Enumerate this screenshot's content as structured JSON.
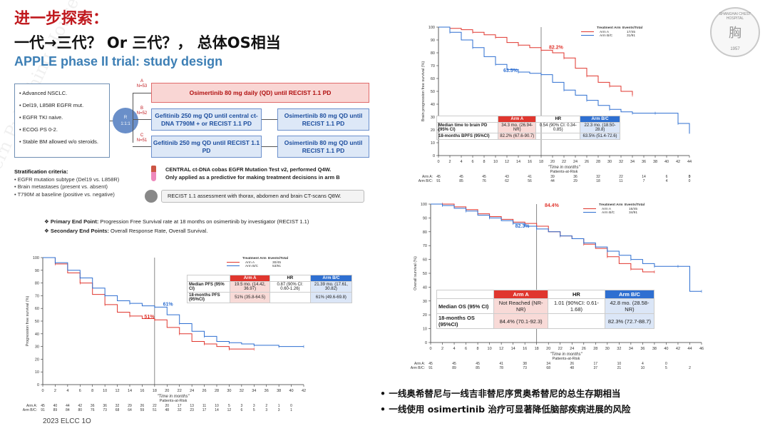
{
  "header": {
    "line1": "进一步探索：",
    "line2": "一代→三代？ Or 三代？， 总体OS相当",
    "subtitle": "APPLE phase II trial: study design"
  },
  "logo": {
    "name": "SHANGHAI CHEST HOSPITAL",
    "year": "1957",
    "glyphs": "胸"
  },
  "watermark": "ern Publishing House",
  "design": {
    "patient_criteria": [
      "Advanced NSCLC.",
      "Del19, L858R EGFR mut.",
      "EGFR TKI naive.",
      "ECOG PS 0-2.",
      "Stable BM allowed w/o steroids."
    ],
    "randomization": [
      "R",
      "1:1:1"
    ],
    "arms": [
      {
        "letter": "A",
        "n": "N=53",
        "first": "Osimertinib 80 mg daily (QD) until RECIST 1.1 PD",
        "second": ""
      },
      {
        "letter": "B",
        "n": "N=52",
        "first": "Gefitinib 250 mg QD until central ct-DNA T790M + or RECIST 1.1 PD",
        "second": "Osimertinib 80 mg QD until RECIST 1.1 PD"
      },
      {
        "letter": "C",
        "n": "N=51",
        "first": "Gefitinib 250 mg QD until RECIST 1.1 PD",
        "second": "Osimertinib 80 mg QD until RECIST 1.1 PD"
      }
    ],
    "stratification": {
      "heading": "Stratification criteria:",
      "items": [
        "EGFR mutation subtype (Del19 vs. L858R)",
        "Brain metastases (present vs. absent)",
        "T790M at baseline (positive vs. negative)"
      ]
    },
    "ctdna": {
      "line1": "CENTRAL ct-DNA cobas EGFR Mutation Test v2, performed Q4W.",
      "line2": "Only applied as a predictive for making treatment decisions in arm B"
    },
    "recist": "RECIST 1.1 assessment with thorax, abdomen and brain CT-scans Q8W.",
    "primary_endpoint": {
      "label": "Primary End Point:",
      "text": "Progression Free Survival rate at 18 months on osimertinib by investigator (RECIST 1.1)"
    },
    "secondary_endpoint": {
      "label": "Secondary End Points:",
      "text": "Overall Response Rate, Overall Survival."
    }
  },
  "colors": {
    "arm_a": "#e0362e",
    "arm_bc": "#2e6fd1",
    "title_red": "#c0191e",
    "subtitle_blue": "#3d7fb5"
  },
  "chart_data": [
    {
      "id": "pfs",
      "type": "line",
      "ylabel": "Progression free survival (%)",
      "xlabel": "Time in months",
      "risk_label": "Patients-at-Risk",
      "xlim": [
        0,
        42
      ],
      "ylim": [
        0,
        100
      ],
      "xticks": [
        0,
        2,
        4,
        6,
        8,
        10,
        12,
        14,
        16,
        18,
        20,
        22,
        24,
        26,
        28,
        30,
        32,
        34,
        36,
        38,
        40,
        42
      ],
      "yticks": [
        0,
        10,
        20,
        30,
        40,
        50,
        60,
        70,
        80,
        90,
        100
      ],
      "marker_x": 18,
      "legend_header": [
        "Treatment Arm",
        "Events/Total"
      ],
      "series": [
        {
          "name": "Arm A",
          "events": "30/45",
          "color": "#e0362e",
          "label": "51%",
          "label_xy": [
            16,
            51
          ],
          "x": [
            0,
            2,
            4,
            6,
            8,
            10,
            12,
            14,
            16,
            18,
            20,
            22,
            24,
            26,
            28,
            30,
            32,
            34
          ],
          "y": [
            100,
            95,
            88,
            80,
            71,
            63,
            57,
            54,
            52,
            51,
            45,
            40,
            34,
            32,
            30,
            28,
            28,
            28
          ]
        },
        {
          "name": "Arm B/C",
          "events": "53/91",
          "color": "#2e6fd1",
          "label": "61%",
          "label_xy": [
            19,
            61
          ],
          "x": [
            0,
            2,
            4,
            6,
            8,
            10,
            12,
            14,
            16,
            18,
            20,
            22,
            24,
            26,
            28,
            30,
            32,
            34,
            36,
            38,
            40,
            42
          ],
          "y": [
            100,
            96,
            90,
            84,
            76,
            70,
            66,
            64,
            62,
            61,
            55,
            48,
            42,
            38,
            34,
            33,
            32,
            31,
            31,
            30,
            30,
            30
          ]
        }
      ],
      "risk": [
        {
          "arm": "Arm A",
          "values": [
            "45",
            "40",
            "44",
            "42",
            "36",
            "36",
            "32",
            "29",
            "26",
            "22",
            "20",
            "17",
            "13",
            "11",
            "10",
            "5",
            "3",
            "3",
            "2",
            "1",
            "0",
            ""
          ]
        },
        {
          "arm": "Arm B/C",
          "values": [
            "91",
            "89",
            "84",
            "80",
            "76",
            "73",
            "68",
            "64",
            "59",
            "51",
            "48",
            "32",
            "23",
            "17",
            "14",
            "12",
            "6",
            "5",
            "3",
            "3",
            "1",
            ""
          ]
        }
      ],
      "table": {
        "headers": [
          "",
          "Arm A",
          "HR",
          "Arm B/C"
        ],
        "rows": [
          [
            "Median PFS (95% CI)",
            "19.5 mo. (14.42, 36.97)",
            "0.87 (90% CI: 0.60-1.26)",
            "21.39 mo. (17.61, 30.82)"
          ],
          [
            "18-months PFS (95%CI)",
            "51% (35.8-64.5)",
            "",
            "61% (49.6-69.8)"
          ]
        ]
      }
    },
    {
      "id": "brain",
      "type": "line",
      "ylabel": "Brain progression free survival (%)",
      "xlabel": "Time in months",
      "risk_label": "Patients-at-Risk",
      "xlim": [
        0,
        44
      ],
      "ylim": [
        0,
        100
      ],
      "xticks": [
        0,
        2,
        4,
        6,
        8,
        10,
        12,
        14,
        16,
        18,
        20,
        22,
        24,
        26,
        28,
        30,
        32,
        34,
        36,
        38,
        40,
        42,
        44
      ],
      "yticks": [
        0,
        10,
        20,
        30,
        40,
        50,
        60,
        70,
        80,
        90,
        100
      ],
      "marker_x": 18,
      "legend_header": [
        "Treatment Arm",
        "Events/Total"
      ],
      "series": [
        {
          "name": "Arm A",
          "events": "17/45",
          "color": "#e0362e",
          "label": "82.2%",
          "label_xy": [
            19,
            82
          ],
          "x": [
            0,
            2,
            4,
            6,
            8,
            10,
            12,
            14,
            16,
            18,
            20,
            22,
            24,
            26,
            28,
            30,
            32,
            34
          ],
          "y": [
            100,
            99,
            98,
            96,
            94,
            92,
            88,
            86,
            84,
            82,
            80,
            76,
            68,
            62,
            57,
            54,
            50,
            47
          ]
        },
        {
          "name": "Arm B/C",
          "events": "31/91",
          "color": "#2e6fd1",
          "label": "63.5%",
          "label_xy": [
            11,
            64
          ],
          "x": [
            0,
            2,
            4,
            6,
            8,
            10,
            12,
            14,
            16,
            18,
            20,
            22,
            24,
            26,
            28,
            30,
            32,
            34,
            36,
            38,
            40,
            42,
            44
          ],
          "y": [
            100,
            96,
            90,
            84,
            77,
            71,
            67,
            65,
            64,
            63,
            57,
            51,
            47,
            43,
            39,
            36,
            34,
            33,
            33,
            33,
            33,
            25,
            17
          ]
        }
      ],
      "risk": [
        {
          "arm": "Arm A",
          "values": [
            "45",
            "45",
            "45",
            "43",
            "41",
            "39",
            "36",
            "32",
            "22",
            "14",
            "6",
            "3",
            "0"
          ]
        },
        {
          "arm": "Arm B/C",
          "values": [
            "91",
            "85",
            "76",
            "62",
            "56",
            "44",
            "29",
            "18",
            "11",
            "7",
            "4",
            "0",
            ""
          ]
        }
      ],
      "table": {
        "headers": [
          "",
          "Arm A",
          "HR",
          "Arm B/C"
        ],
        "rows": [
          [
            "Median time to brain PD (95% CI)",
            "34.3 mo. (26.94-NR)",
            "0.54 (90% CI: 0.34-0.85)",
            "22.3 mo. (18.50-28.8)"
          ],
          [
            "18-months BPFS (95%CI)",
            "82.2% (67.6-90.7)",
            "",
            "63.5% (51.4-72.6)"
          ]
        ]
      }
    },
    {
      "id": "os",
      "type": "line",
      "ylabel": "Overall survival (%)",
      "xlabel": "Time in months",
      "risk_label": "Patients-at-Risk",
      "xlim": [
        0,
        46
      ],
      "ylim": [
        0,
        100
      ],
      "xticks": [
        0,
        2,
        4,
        6,
        8,
        10,
        12,
        14,
        16,
        18,
        20,
        22,
        24,
        26,
        28,
        30,
        32,
        34,
        36,
        38,
        40,
        42,
        44,
        46
      ],
      "yticks": [
        0,
        10,
        20,
        30,
        40,
        50,
        60,
        70,
        80,
        90,
        100
      ],
      "marker_x": 18,
      "legend_header": [
        "Treatment Arm",
        "Events/Total"
      ],
      "series": [
        {
          "name": "Arm A",
          "events": "16/45",
          "color": "#e0362e",
          "label": "84.4%",
          "label_xy": [
            19,
            97
          ],
          "x": [
            0,
            2,
            4,
            6,
            8,
            10,
            12,
            14,
            16,
            18,
            20,
            22,
            24,
            26,
            28,
            30,
            32,
            34,
            36,
            38
          ],
          "y": [
            100,
            100,
            98,
            96,
            93,
            91,
            89,
            87,
            86,
            84,
            80,
            77,
            75,
            71,
            68,
            62,
            57,
            53,
            51,
            51
          ]
        },
        {
          "name": "Arm B/C",
          "events": "34/91",
          "color": "#2e6fd1",
          "label": "82.3%",
          "label_xy": [
            14,
            82
          ],
          "x": [
            0,
            2,
            4,
            6,
            8,
            10,
            12,
            14,
            16,
            18,
            20,
            22,
            24,
            26,
            28,
            30,
            32,
            34,
            36,
            38,
            40,
            42,
            44,
            46
          ],
          "y": [
            100,
            99,
            97,
            95,
            92,
            90,
            88,
            86,
            84,
            82,
            80,
            77,
            75,
            72,
            69,
            66,
            63,
            60,
            57,
            55,
            55,
            55,
            37,
            37
          ]
        }
      ],
      "risk": [
        {
          "arm": "Arm A",
          "values": [
            "45",
            "45",
            "45",
            "41",
            "38",
            "34",
            "26",
            "17",
            "10",
            "4",
            "0"
          ]
        },
        {
          "arm": "Arm B/C",
          "values": [
            "91",
            "89",
            "85",
            "78",
            "73",
            "68",
            "48",
            "37",
            "21",
            "10",
            "5",
            "2"
          ]
        }
      ],
      "table": {
        "headers": [
          "",
          "Arm A",
          "HR",
          "Arm B/C"
        ],
        "rows": [
          [
            "Median OS (95% CI)",
            "Not Reached (NR-NR)",
            "1.01 (90%CI: 0.61-1.68)",
            "42.8 mo. (28.58-NR)"
          ],
          [
            "18-months OS (95%CI)",
            "84.4% (70.1-92.3)",
            "",
            "82.3% (72.7-88.7)"
          ]
        ]
      }
    }
  ],
  "conclusions": [
    "一线奥希替尼与一线吉非替尼序贯奥希替尼的总生存期相当",
    "一线使用 osimertinib 治疗可显著降低脑部疾病进展的风险"
  ],
  "footer": "2023 ELCC 1O"
}
